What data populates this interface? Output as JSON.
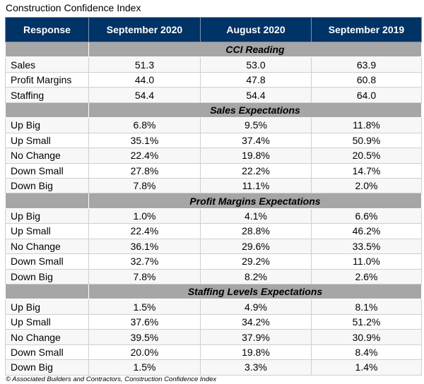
{
  "title": "Construction Confidence Index",
  "columns": [
    "Response",
    "September 2020",
    "August 2020",
    "September 2019"
  ],
  "sections": [
    {
      "label": "CCI Reading",
      "rows": [
        [
          "Sales",
          "51.3",
          "53.0",
          "63.9"
        ],
        [
          "Profit Margins",
          "44.0",
          "47.8",
          "60.8"
        ],
        [
          "Staffing",
          "54.4",
          "54.4",
          "64.0"
        ]
      ]
    },
    {
      "label": "Sales Expectations",
      "rows": [
        [
          "Up Big",
          "6.8%",
          "9.5%",
          "11.8%"
        ],
        [
          "Up Small",
          "35.1%",
          "37.4%",
          "50.9%"
        ],
        [
          "No Change",
          "22.4%",
          "19.8%",
          "20.5%"
        ],
        [
          "Down Small",
          "27.8%",
          "22.2%",
          "14.7%"
        ],
        [
          "Down Big",
          "7.8%",
          "11.1%",
          "2.0%"
        ]
      ]
    },
    {
      "label": "Profit Margins Expectations",
      "rows": [
        [
          "Up Big",
          "1.0%",
          "4.1%",
          "6.6%"
        ],
        [
          "Up Small",
          "22.4%",
          "28.8%",
          "46.2%"
        ],
        [
          "No Change",
          "36.1%",
          "29.6%",
          "33.5%"
        ],
        [
          "Down Small",
          "32.7%",
          "29.2%",
          "11.0%"
        ],
        [
          "Down Big",
          "7.8%",
          "8.2%",
          "2.6%"
        ]
      ]
    },
    {
      "label": "Staffing Levels Expectations",
      "rows": [
        [
          "Up Big",
          "1.5%",
          "4.9%",
          "8.1%"
        ],
        [
          "Up Small",
          "37.6%",
          "34.2%",
          "51.2%"
        ],
        [
          "No Change",
          "39.5%",
          "37.9%",
          "30.9%"
        ],
        [
          "Down Small",
          "20.0%",
          "19.8%",
          "8.4%"
        ],
        [
          "Down Big",
          "1.5%",
          "3.3%",
          "1.4%"
        ]
      ]
    }
  ],
  "footer": "© Associated Builders and Contractors, Construction Confidence Index",
  "colors": {
    "header_bg": "#003366",
    "section_bg": "#a6a6a6"
  }
}
